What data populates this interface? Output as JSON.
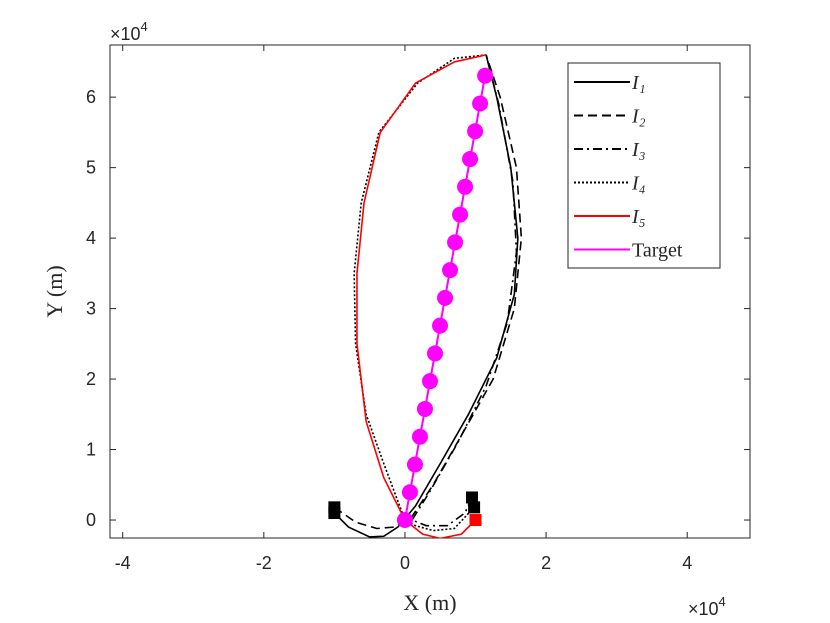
{
  "chart_data": {
    "type": "line",
    "xlabel": "X (m)",
    "ylabel": "Y (m)",
    "x_multiplier": {
      "base": "×10",
      "exponent": "4"
    },
    "y_multiplier": {
      "base": "×10",
      "exponent": "4"
    },
    "xlim": [
      -41800,
      48900
    ],
    "ylim": [
      -2550,
      67400
    ],
    "xticks": [
      {
        "value": -40000,
        "label": "-4"
      },
      {
        "value": -20000,
        "label": "-2"
      },
      {
        "value": 0,
        "label": "0"
      },
      {
        "value": 20000,
        "label": "2"
      },
      {
        "value": 40000,
        "label": "4"
      }
    ],
    "yticks": [
      {
        "value": 0,
        "label": "0"
      },
      {
        "value": 10000,
        "label": "1"
      },
      {
        "value": 20000,
        "label": "2"
      },
      {
        "value": 30000,
        "label": "3"
      },
      {
        "value": 40000,
        "label": "4"
      },
      {
        "value": 50000,
        "label": "5"
      },
      {
        "value": 60000,
        "label": "6"
      }
    ],
    "legend": "upper right",
    "series": [
      {
        "name": "I₁",
        "color": "#000000",
        "dash": "solid",
        "x": [
          -10000,
          -8000,
          -5000,
          -3000,
          -1000,
          1500,
          5000,
          9000,
          13000,
          15500,
          16000,
          15000,
          13000,
          11500
        ],
        "y": [
          1000,
          -1000,
          -2400,
          -2300,
          -1000,
          2000,
          8000,
          15000,
          23000,
          32000,
          40000,
          50000,
          60000,
          66000
        ]
      },
      {
        "name": "I₂",
        "color": "#000000",
        "dash": "dashed",
        "x": [
          -10000,
          -7000,
          -4000,
          -1500,
          1000,
          4000,
          8000,
          12500,
          15500,
          16500,
          15800,
          13500,
          11500
        ],
        "y": [
          1800,
          -300,
          -1200,
          -1000,
          500,
          5000,
          12000,
          20000,
          30000,
          40000,
          50000,
          60000,
          66000
        ]
      },
      {
        "name": "I₃",
        "color": "#000000",
        "dash": "dashdot",
        "x": [
          9500,
          8500,
          6000,
          3000,
          1000,
          3500,
          7500,
          11500,
          14500,
          15800,
          15300,
          13300,
          11500
        ],
        "y": [
          3200,
          1000,
          -800,
          -800,
          0,
          4000,
          11000,
          19000,
          28000,
          38000,
          48000,
          59000,
          66000
        ]
      },
      {
        "name": "I₄",
        "color": "#000000",
        "dash": "dotted",
        "x": [
          9800,
          7000,
          4000,
          1500,
          0,
          -3000,
          -5500,
          -7000,
          -7200,
          -6200,
          -3700,
          1800,
          7000,
          11500
        ],
        "y": [
          1800,
          -1200,
          -1500,
          -800,
          0,
          8000,
          15000,
          25000,
          35000,
          45000,
          55000,
          62000,
          65500,
          66000
        ]
      },
      {
        "name": "I₅",
        "color": "#ff0000",
        "dash": "solid",
        "x": [
          10000,
          8000,
          5000,
          2500,
          0,
          -3000,
          -5500,
          -6800,
          -6800,
          -5800,
          -3500,
          1500,
          7000,
          11500
        ],
        "y": [
          0,
          -2000,
          -2600,
          -2000,
          0,
          6000,
          14000,
          25000,
          35000,
          45000,
          55000,
          62000,
          65000,
          66000
        ]
      },
      {
        "name": "Target",
        "color": "#ff00ff",
        "dash": "solid",
        "markers": true,
        "x": [
          0,
          710,
          1420,
          2130,
          2840,
          3550,
          4260,
          4970,
          5680,
          6390,
          7100,
          7810,
          8520,
          9230,
          9940,
          10650,
          11360
        ],
        "y": [
          0,
          3940,
          7880,
          11820,
          15760,
          19700,
          23640,
          27580,
          31520,
          35460,
          39400,
          43340,
          47280,
          51220,
          55160,
          59100,
          63040
        ]
      }
    ]
  }
}
